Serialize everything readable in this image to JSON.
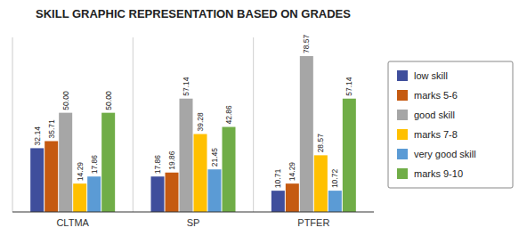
{
  "chart_data": {
    "type": "bar",
    "title": "SKILL GRAPHIC REPRESENTATION BASED ON GRADES",
    "categories": [
      "CLTMA",
      "SP",
      "PTFER"
    ],
    "series": [
      {
        "name": "low skill",
        "color": "#3f4e9c",
        "values": [
          32.14,
          17.86,
          10.71
        ],
        "value_labels": [
          "32.14",
          "17.86",
          "10.71"
        ]
      },
      {
        "name": "marks 5-6",
        "color": "#c55a11",
        "values": [
          35.71,
          19.86,
          14.29
        ],
        "value_labels": [
          "35.71",
          "19.86",
          "14.29"
        ]
      },
      {
        "name": "good skill",
        "color": "#a6a6a6",
        "values": [
          50.0,
          57.14,
          78.57
        ],
        "value_labels": [
          "50.00",
          "57.14",
          "78.57"
        ]
      },
      {
        "name": "marks 7-8",
        "color": "#ffc000",
        "values": [
          14.29,
          39.28,
          28.57
        ],
        "value_labels": [
          "14.29",
          "39.28",
          "28.57"
        ]
      },
      {
        "name": "very good skill",
        "color": "#5b9bd5",
        "values": [
          17.86,
          21.45,
          10.72
        ],
        "value_labels": [
          "17.86",
          "21.45",
          "10.72"
        ]
      },
      {
        "name": "marks 9-10",
        "color": "#70ad47",
        "values": [
          50.0,
          42.86,
          57.14
        ],
        "value_labels": [
          "50.00",
          "42.86",
          "57.14"
        ]
      }
    ],
    "ylim": [
      0,
      88
    ],
    "data_labels": true,
    "tick_labels": "x",
    "legend": "right"
  }
}
